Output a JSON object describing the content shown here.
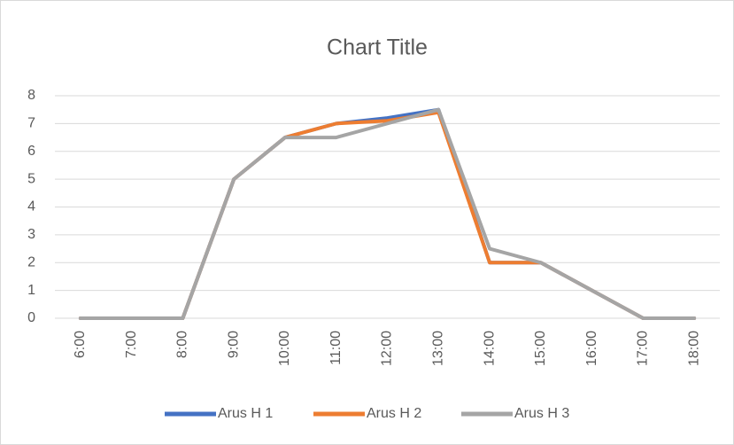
{
  "chart_data": {
    "type": "line",
    "title": "Chart Title",
    "categories": [
      "6:00",
      "7:00",
      "8:00",
      "9:00",
      "10:00",
      "11:00",
      "12:00",
      "13:00",
      "14:00",
      "15:00",
      "16:00",
      "17:00",
      "18:00"
    ],
    "series": [
      {
        "name": "Arus H 1",
        "color": "#4472c4",
        "values": [
          0,
          0,
          0,
          5,
          6.5,
          7,
          7.2,
          7.5,
          2,
          2,
          1,
          0,
          0
        ]
      },
      {
        "name": "Arus H 2",
        "color": "#ed7d31",
        "values": [
          0,
          0,
          0,
          5,
          6.5,
          7,
          7.1,
          7.4,
          2,
          2,
          1,
          0,
          0
        ]
      },
      {
        "name": "Arus H 3",
        "color": "#a5a5a5",
        "values": [
          0,
          0,
          0,
          5,
          6.5,
          6.5,
          7,
          7.5,
          2.5,
          2,
          1,
          0,
          0
        ]
      }
    ],
    "ylim": [
      0,
      8
    ],
    "yticks": [
      0,
      1,
      2,
      3,
      4,
      5,
      6,
      7,
      8
    ],
    "grid": true,
    "legend": "bottom"
  }
}
